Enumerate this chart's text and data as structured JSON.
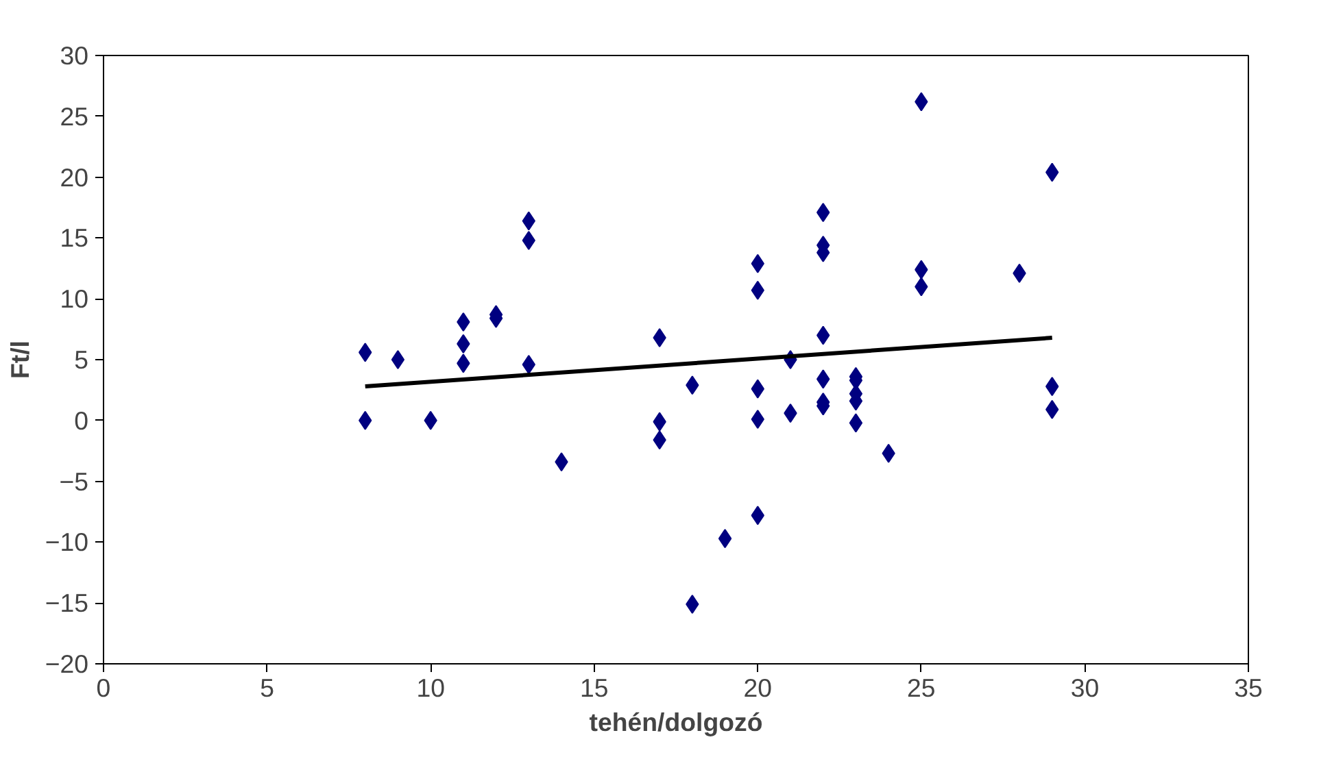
{
  "chart_data": {
    "type": "scatter",
    "xlabel": "tehén/dolgozó",
    "ylabel": "Ft/l",
    "xlim": [
      0,
      35
    ],
    "xticks": [
      0,
      5,
      10,
      15,
      20,
      25,
      30,
      35
    ],
    "ylim": [
      -20,
      30
    ],
    "yticks": [
      -20,
      -15,
      -10,
      -5,
      0,
      5,
      10,
      15,
      20,
      25,
      30
    ],
    "grid": false,
    "marker": "diamond",
    "series": [
      {
        "color": "#000080",
        "x": [
          8,
          8,
          9,
          10,
          11,
          11,
          11,
          12,
          12,
          13,
          13,
          13,
          14,
          17,
          17,
          17,
          18,
          18,
          19,
          20,
          20,
          20,
          20,
          20,
          21,
          21,
          22,
          22,
          22,
          22,
          22,
          22,
          22,
          23,
          23,
          23,
          23,
          23,
          24,
          25,
          25,
          25,
          28,
          29,
          29,
          29
        ],
        "values": [
          5.6,
          0,
          5.0,
          0,
          8.1,
          6.3,
          4.7,
          8.7,
          8.4,
          16.4,
          14.8,
          4.6,
          -3.4,
          6.8,
          -0.1,
          -1.6,
          2.9,
          -15.1,
          -9.7,
          12.9,
          10.7,
          2.6,
          0.1,
          -7.8,
          5.0,
          0.6,
          17.1,
          14.4,
          13.8,
          7.0,
          3.4,
          1.5,
          1.2,
          3.6,
          3.3,
          2.2,
          1.6,
          -0.2,
          -2.7,
          26.2,
          12.4,
          11.0,
          12.1,
          20.4,
          2.8,
          0.9
        ]
      },
      {
        "type": "line",
        "marker": "none",
        "color": "#000000",
        "x": [
          8,
          29
        ],
        "values": [
          2.8,
          6.8
        ]
      }
    ]
  }
}
